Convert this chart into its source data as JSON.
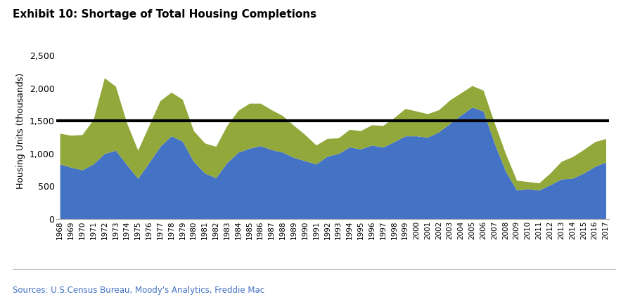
{
  "title": "Exhibit 10: Shortage of Total Housing Completions",
  "ylabel": "Housing Units (thousands)",
  "source_text": "Sources: U.S.Census Bureau, Moody's Analytics, Freddie Mac",
  "hist_avg": 1500,
  "single_family_color": "#4472C4",
  "multifamily_color": "#92A83A",
  "hist_avg_color": "#000000",
  "ylim": [
    0,
    2700
  ],
  "yticks": [
    0,
    500,
    1000,
    1500,
    2000,
    2500
  ],
  "years": [
    1968,
    1969,
    1970,
    1971,
    1972,
    1973,
    1974,
    1975,
    1976,
    1977,
    1978,
    1979,
    1980,
    1981,
    1982,
    1983,
    1984,
    1985,
    1986,
    1987,
    1988,
    1989,
    1990,
    1991,
    1992,
    1993,
    1994,
    1995,
    1996,
    1997,
    1998,
    1999,
    2000,
    2001,
    2002,
    2003,
    2004,
    2005,
    2006,
    2007,
    2008,
    2009,
    2010,
    2011,
    2012,
    2013,
    2014,
    2015,
    2016,
    2017
  ],
  "single_family": [
    840,
    790,
    750,
    840,
    1000,
    1050,
    830,
    620,
    860,
    1110,
    1270,
    1190,
    880,
    700,
    630,
    860,
    1020,
    1080,
    1120,
    1060,
    1020,
    940,
    890,
    840,
    960,
    1000,
    1100,
    1070,
    1130,
    1100,
    1180,
    1270,
    1270,
    1250,
    1330,
    1460,
    1590,
    1710,
    1650,
    1160,
    730,
    440,
    460,
    440,
    520,
    610,
    620,
    700,
    800,
    870
  ],
  "multifamily": [
    470,
    490,
    540,
    680,
    1160,
    980,
    640,
    430,
    570,
    700,
    670,
    640,
    470,
    460,
    480,
    570,
    640,
    690,
    650,
    610,
    560,
    490,
    400,
    290,
    270,
    240,
    270,
    280,
    310,
    330,
    370,
    420,
    380,
    360,
    340,
    360,
    340,
    330,
    320,
    310,
    270,
    150,
    110,
    110,
    180,
    270,
    330,
    360,
    380,
    360
  ]
}
